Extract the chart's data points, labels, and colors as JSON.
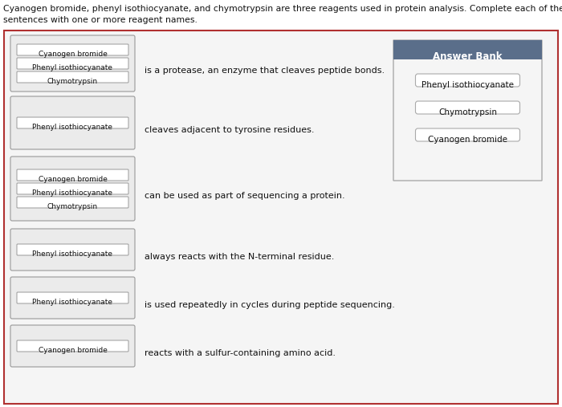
{
  "title_line1": "Cyanogen bromide, phenyl isothiocyanate, and chymotrypsin are three reagents used in protein analysis. Complete each of the",
  "title_line2": "sentences with one or more reagent names.",
  "bg_color": "#ffffff",
  "outer_box_edge": "#b03030",
  "outer_box_fill": "#f5f5f5",
  "row_box_edge": "#999999",
  "row_box_fill": "#ebebeb",
  "label_box_edge": "#999999",
  "label_box_fill": "#ffffff",
  "answer_bank_header_bg": "#5a6e8a",
  "answer_bank_header_fg": "#ffffff",
  "answer_bank_box_edge": "#aaaaaa",
  "answer_bank_box_fill": "#f5f5f5",
  "answer_item_edge": "#aaaaaa",
  "answer_item_fill": "#ffffff",
  "rows": [
    {
      "labels": [
        "Cyanogen bromide",
        "Phenyl isothiocyanate",
        "Chymotrypsin"
      ],
      "text": "is a protease, an enzyme that cleaves peptide bonds."
    },
    {
      "labels": [
        "Phenyl isothiocyanate"
      ],
      "text": "cleaves adjacent to tyrosine residues."
    },
    {
      "labels": [
        "Cyanogen bromide",
        "Phenyl isothiocyanate",
        "Chymotrypsin"
      ],
      "text": "can be used as part of sequencing a protein."
    },
    {
      "labels": [
        "Phenyl isothiocyanate"
      ],
      "text": "always reacts with the N-terminal residue."
    },
    {
      "labels": [
        "Phenyl isothiocyanate"
      ],
      "text": "is used repeatedly in cycles during peptide sequencing."
    },
    {
      "labels": [
        "Cyanogen bromide"
      ],
      "text": "reacts with a sulfur-containing amino acid."
    }
  ],
  "answer_bank_title": "Answer Bank",
  "answer_bank_items": [
    "Phenyl isothiocyanate",
    "Chymotrypsin",
    "Cyanogen bromide"
  ],
  "figw": 7.0,
  "figh": 5.07,
  "dpi": 100
}
